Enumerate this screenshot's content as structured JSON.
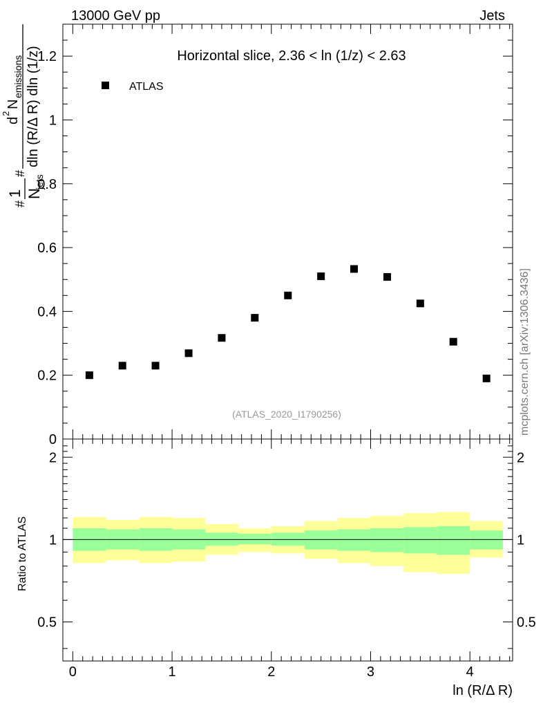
{
  "header": {
    "left": "13000 GeV pp",
    "right": "Jets"
  },
  "side_label": "mcplots.cern.ch [arXiv:1306.3436]",
  "watermark": "(ATLAS_2020_I1790256)",
  "colors": {
    "band_inner": "#99ff99",
    "band_outer": "#ffff99",
    "marker": "#000000"
  },
  "chart_data": [
    {
      "type": "scatter",
      "panel": "main",
      "title": "Horizontal slice, 2.36 < ln (1/z) < 2.63",
      "xlabel": "ln (R/Δ R)",
      "ylabel": "#frac{1}{N_{jets}}#frac{d^{2} N_{emissions}}{dln (R/Δ R) dln (1/z)}",
      "ylabel_parts": {
        "num_left": "1",
        "den_left": "N",
        "den_left_sub": "jets",
        "num_right": "d",
        "num_right_sup": "2",
        "num_right_main": "N",
        "num_right_sub": "emissions",
        "den_right": "dln (R/Δ R) dln (1/z)",
        "hash": "#"
      },
      "xlim": [
        -0.1,
        4.43
      ],
      "ylim": [
        0,
        1.3
      ],
      "yticks": [
        0,
        0.2,
        0.4,
        0.6,
        0.8,
        1,
        1.2
      ],
      "ytick_labels": [
        "0",
        "0.2",
        "0.4",
        "0.6",
        "0.8",
        "1",
        "1.2"
      ],
      "legend": {
        "label": "ATLAS",
        "position": "top-left"
      },
      "series": [
        {
          "name": "ATLAS",
          "x": [
            0.167,
            0.5,
            0.833,
            1.167,
            1.5,
            1.833,
            2.167,
            2.5,
            2.833,
            3.167,
            3.5,
            3.833,
            4.167
          ],
          "values": [
            0.2,
            0.23,
            0.23,
            0.269,
            0.317,
            0.38,
            0.45,
            0.51,
            0.533,
            0.508,
            0.425,
            0.305,
            0.19
          ]
        }
      ]
    },
    {
      "type": "area",
      "panel": "ratio",
      "ylabel": "Ratio to ATLAS",
      "xlabel": "ln (R/Δ R)",
      "xlim": [
        -0.1,
        4.43
      ],
      "ylim": [
        0.36,
        2.33
      ],
      "yscale": "log",
      "yticks": [
        0.5,
        1,
        2
      ],
      "ytick_labels": [
        "0.5",
        "1",
        "2"
      ],
      "xticks": [
        0,
        1,
        2,
        3,
        4
      ],
      "xtick_labels": [
        "0",
        "1",
        "2",
        "3",
        "4"
      ],
      "bin_edges": [
        0,
        0.333,
        0.667,
        1.0,
        1.333,
        1.667,
        2.0,
        2.333,
        2.667,
        3.0,
        3.333,
        3.667,
        4.0,
        4.333
      ],
      "inner_band": {
        "lo": [
          0.91,
          0.92,
          0.91,
          0.92,
          0.95,
          0.96,
          0.95,
          0.92,
          0.91,
          0.9,
          0.89,
          0.88,
          0.92
        ],
        "hi": [
          1.1,
          1.09,
          1.1,
          1.09,
          1.06,
          1.05,
          1.06,
          1.08,
          1.09,
          1.1,
          1.11,
          1.12,
          1.08
        ]
      },
      "outer_band": {
        "lo": [
          0.82,
          0.84,
          0.82,
          0.83,
          0.88,
          0.9,
          0.89,
          0.85,
          0.82,
          0.8,
          0.76,
          0.75,
          0.86
        ],
        "hi": [
          1.21,
          1.18,
          1.21,
          1.2,
          1.14,
          1.1,
          1.12,
          1.17,
          1.2,
          1.22,
          1.25,
          1.26,
          1.17
        ]
      },
      "reference_line": 1
    }
  ]
}
